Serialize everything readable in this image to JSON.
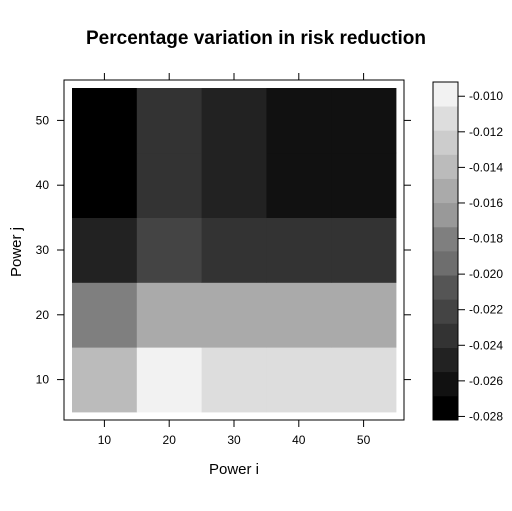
{
  "chart_data": {
    "type": "heatmap",
    "title": "Percentage variation in risk reduction",
    "xlabel": "Power i",
    "ylabel": "Power j",
    "x": [
      10,
      20,
      30,
      40,
      50
    ],
    "y": [
      10,
      20,
      30,
      40,
      50
    ],
    "xlim": [
      5,
      55
    ],
    "ylim": [
      5,
      55
    ],
    "x_ticks": [
      10,
      20,
      30,
      40,
      50
    ],
    "y_ticks": [
      10,
      20,
      30,
      40,
      50
    ],
    "z": [
      [
        -0.0135,
        -0.0097,
        -0.0107,
        -0.0107,
        -0.0107
      ],
      [
        -0.0184,
        -0.0148,
        -0.0158,
        -0.0158,
        -0.0158
      ],
      [
        -0.0242,
        -0.0219,
        -0.0228,
        -0.0236,
        -0.0236
      ],
      [
        -0.0276,
        -0.0228,
        -0.0254,
        -0.0264,
        -0.0264
      ],
      [
        -0.0276,
        -0.0228,
        -0.0254,
        -0.0264,
        -0.0264
      ]
    ],
    "colorkey": {
      "min": -0.0282,
      "max": -0.0092,
      "bins": 14,
      "ticks": [
        "-0.010",
        "-0.012",
        "-0.014",
        "-0.016",
        "-0.018",
        "-0.020",
        "-0.022",
        "-0.024",
        "-0.026",
        "-0.028"
      ],
      "tick_values": [
        -0.01,
        -0.012,
        -0.014,
        -0.016,
        -0.018,
        -0.02,
        -0.022,
        -0.024,
        -0.026,
        -0.028
      ],
      "colors": [
        "#000000",
        "#111111",
        "#222222",
        "#333333",
        "#444444",
        "#555555",
        "#6e6e6e",
        "#7f7f7f",
        "#999999",
        "#aaaaaa",
        "#bbbbbb",
        "#cccccc",
        "#dddddd",
        "#f2f2f2"
      ]
    }
  }
}
